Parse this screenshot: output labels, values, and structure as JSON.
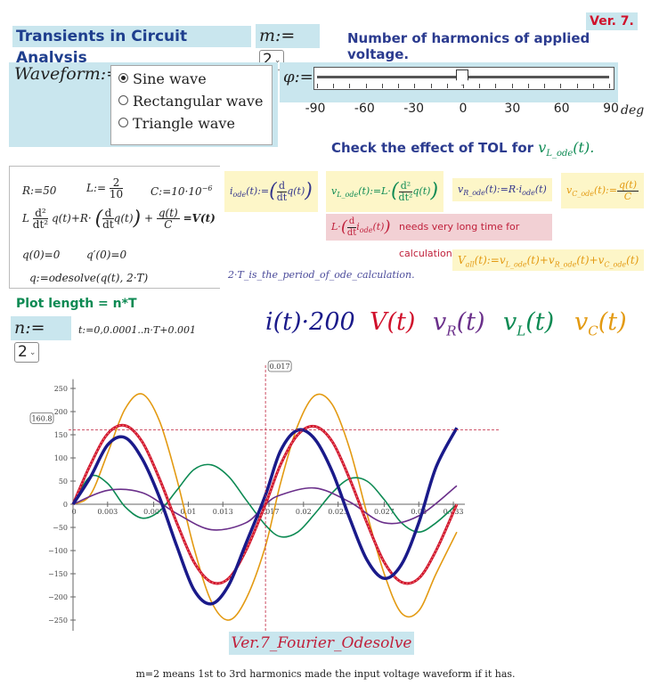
{
  "header": {
    "title": "Transients in Circuit Analysis",
    "m_label": "m:=",
    "m_value": "2",
    "version": "Ver. 7.",
    "harmonics_note": "Number of harmonics of applied voltage."
  },
  "waveform": {
    "label": "Waveform:=",
    "options": [
      "Sine wave",
      "Rectangular wave",
      "Triangle wave"
    ],
    "selected": "Sine wave"
  },
  "phase": {
    "label": "φ:=",
    "value": 0,
    "min": -90,
    "max": 90,
    "scale_labels": [
      "-90",
      "-60",
      "-30",
      "0",
      "30",
      "60",
      "90"
    ],
    "unit": "deg"
  },
  "tol_note": {
    "text": "Check the effect of TOL for",
    "var": "v",
    "var_sub": "L_ode",
    "var_arg": "(t)."
  },
  "equations": {
    "R": "R:=50",
    "L_pre": "L:=",
    "L_num": "2",
    "L_den": "10",
    "C": "C:=10·10",
    "C_exp": "−6",
    "ode_L": "L",
    "ode_d2": "d²",
    "ode_dt2": "dt²",
    "ode_q1": "q(t)+R·",
    "ode_d": "d",
    "ode_dt": "dt",
    "ode_q2": "q(t)",
    "ode_plus": "+",
    "ode_qt": "q(t)",
    "ode_C": "C",
    "ode_rhs": "=V(t)",
    "init1": "q(0)=0",
    "init2": "q′(0)=0",
    "solve": "q:=odesolve(q(t), 2·T)"
  },
  "defs": {
    "i_ode": "i",
    "i_ode_sub": "ode",
    "i_ode_rest": "(t):=",
    "i_d": "d",
    "i_dt": "dt",
    "i_q": "q(t)",
    "vL": "v",
    "vL_sub": "L_ode",
    "vL_rest": "(t):=L·",
    "vL_d2": "d²",
    "vL_dt2": "dt²",
    "vL_q": "q(t)",
    "vR": "v",
    "vR_sub": "R_ode",
    "vR_rest": "(t):=R·i",
    "vR_sub2": "ode",
    "vR_end": "(t)",
    "vC": "v",
    "vC_sub": "C_ode",
    "vC_rest": "(t):=",
    "vC_num": "q(t)",
    "vC_den": "C",
    "warn_pre": "L·",
    "warn_d": "d",
    "warn_dt": "dt",
    "warn_i": "i",
    "warn_sub": "ode",
    "warn_t": "(t)",
    "warn_text": "needs very long time for calculation!",
    "vall": "V",
    "vall_sub": "all",
    "vall_rest": "(t):=v",
    "vall_s1": "L_ode",
    "vall_p1": "(t)+v",
    "vall_s2": "R_ode",
    "vall_p2": "(t)+v",
    "vall_s3": "C_ode",
    "vall_p3": "(t)"
  },
  "period_note": "2·T_is_the_period_of_ode_calculation.",
  "plot_length": {
    "title": "Plot length = n*T",
    "n_label": "n:=",
    "n_value": "2",
    "t_def": "t:=0,0.0001..n·T+0.001"
  },
  "legend": [
    {
      "label": "i(t)·200",
      "color": "#1a1a8a"
    },
    {
      "label": "V(t)",
      "color": "#d0112b"
    },
    {
      "label": "vR(t)",
      "color": "#6a2f8a"
    },
    {
      "label": "vL(t)",
      "color": "#0d8a53"
    },
    {
      "label": "vC(t)",
      "color": "#e39a12"
    }
  ],
  "legend_text": {
    "i": "i(t)·200",
    "V": "V(t)",
    "vR": "v",
    "vR_sub": "R",
    "vR_t": "(t)",
    "vL": "v",
    "vL_sub": "L",
    "vL_t": "(t)",
    "vC": "v",
    "vC_sub": "C",
    "vC_t": "(t)"
  },
  "chart_data": {
    "type": "line",
    "xlabel": "",
    "ylabel": "",
    "xlim": [
      0,
      0.034
    ],
    "ylim": [
      -280,
      280
    ],
    "xticks": [
      "0",
      "0.003",
      "0.007",
      "0.01",
      "0.013",
      "0.017",
      "0.02",
      "0.023",
      "0.027",
      "0.03",
      "0.033"
    ],
    "yticks": [
      250,
      200,
      150,
      100,
      50,
      0,
      -50,
      -100,
      -150,
      -200,
      -250
    ],
    "marker_x_label": "0.017",
    "marker_y_label": "160.8",
    "marker_x": 0.0167,
    "marker_y": 160.8,
    "series": [
      {
        "name": "i(t)·200",
        "color": "#1a1a8a",
        "x": [
          0,
          0.0015,
          0.003,
          0.0045,
          0.006,
          0.0075,
          0.009,
          0.0105,
          0.012,
          0.0135,
          0.015,
          0.0167,
          0.018,
          0.0195,
          0.021,
          0.0225,
          0.024,
          0.0255,
          0.027,
          0.0285,
          0.03,
          0.0315,
          0.0333
        ],
        "y": [
          0,
          58,
          128,
          144,
          98,
          15,
          -90,
          -185,
          -215,
          -175,
          -85,
          20,
          115,
          160,
          140,
          70,
          -30,
          -120,
          -160,
          -130,
          -40,
          80,
          165
        ]
      },
      {
        "name": "V(t)",
        "color": "#d0112b",
        "x": [
          0,
          0.0015,
          0.003,
          0.0045,
          0.006,
          0.0075,
          0.009,
          0.0105,
          0.012,
          0.0135,
          0.015,
          0.0167,
          0.018,
          0.0195,
          0.021,
          0.0225,
          0.024,
          0.0255,
          0.027,
          0.0285,
          0.03,
          0.0315,
          0.0333
        ],
        "y": [
          0,
          85,
          152,
          170,
          135,
          55,
          -40,
          -125,
          -168,
          -160,
          -100,
          0,
          85,
          150,
          168,
          135,
          55,
          -40,
          -125,
          -168,
          -160,
          -100,
          0
        ]
      },
      {
        "name": "vR(t)",
        "color": "#6a2f8a",
        "x": [
          0,
          0.003,
          0.006,
          0.009,
          0.012,
          0.015,
          0.0167,
          0.018,
          0.021,
          0.024,
          0.027,
          0.03,
          0.0333
        ],
        "y": [
          0,
          30,
          25,
          -20,
          -55,
          -40,
          0,
          20,
          35,
          5,
          -40,
          -25,
          40
        ]
      },
      {
        "name": "vL(t)",
        "color": "#0d8a53",
        "x": [
          0,
          0.0015,
          0.003,
          0.0045,
          0.006,
          0.0075,
          0.009,
          0.0105,
          0.012,
          0.0135,
          0.015,
          0.0167,
          0.018,
          0.0195,
          0.021,
          0.0225,
          0.024,
          0.0255,
          0.027,
          0.0285,
          0.03,
          0.0315,
          0.0333
        ],
        "y": [
          0,
          60,
          45,
          -5,
          -30,
          -15,
          30,
          75,
          85,
          60,
          10,
          -45,
          -70,
          -60,
          -20,
          25,
          55,
          50,
          10,
          -40,
          -60,
          -40,
          0
        ]
      },
      {
        "name": "vC(t)",
        "color": "#e39a12",
        "x": [
          0,
          0.0015,
          0.003,
          0.0045,
          0.006,
          0.0075,
          0.009,
          0.0105,
          0.012,
          0.0135,
          0.015,
          0.0167,
          0.018,
          0.0195,
          0.021,
          0.0225,
          0.024,
          0.0255,
          0.027,
          0.0285,
          0.03,
          0.0315,
          0.0333
        ],
        "y": [
          0,
          20,
          110,
          205,
          238,
          180,
          55,
          -95,
          -210,
          -250,
          -205,
          -90,
          45,
          170,
          235,
          215,
          120,
          -20,
          -150,
          -235,
          -230,
          -150,
          -60
        ]
      }
    ]
  },
  "plot_caption": "Ver.7_Fourier_Odesolve",
  "footer": "m=2 means 1st to 3rd harmonics made the input voltage waveform if it has."
}
